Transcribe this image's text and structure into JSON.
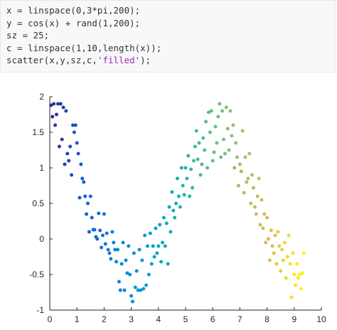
{
  "code": {
    "lines": [
      "x = linspace(0,3*pi,200);",
      "y = cos(x) + rand(1,200);",
      "sz = 25;",
      "c = linspace(1,10,length(x));",
      "scatter(x,y,sz,c,"
    ],
    "last_line_string": "'filled'",
    "last_line_end": ");"
  },
  "chart_data": {
    "type": "scatter",
    "xlim": [
      0,
      10
    ],
    "ylim": [
      -1,
      2
    ],
    "xticks": [
      "0",
      "1",
      "2",
      "3",
      "4",
      "5",
      "6",
      "7",
      "8",
      "9",
      "10"
    ],
    "yticks": [
      "2",
      "1.5",
      "1",
      "0.5",
      "0",
      "-0.5",
      "-1"
    ],
    "grid": false,
    "marker_size": 25,
    "colormap": "parula",
    "series": [
      {
        "points": [
          [
            0.05,
            1.88
          ],
          [
            0.1,
            1.72
          ],
          [
            0.15,
            1.9
          ],
          [
            0.2,
            1.6
          ],
          [
            0.25,
            1.75
          ],
          [
            0.3,
            1.9
          ],
          [
            0.35,
            1.3
          ],
          [
            0.4,
            1.9
          ],
          [
            0.45,
            1.4
          ],
          [
            0.5,
            1.85
          ],
          [
            0.55,
            1.05
          ],
          [
            0.6,
            1.8
          ],
          [
            0.65,
            1.2
          ],
          [
            0.7,
            1.1
          ],
          [
            0.75,
            1.3
          ],
          [
            0.8,
            0.9
          ],
          [
            0.85,
            1.6
          ],
          [
            0.9,
            1.5
          ],
          [
            0.95,
            1.6
          ],
          [
            1.0,
            1.35
          ],
          [
            1.05,
            1.2
          ],
          [
            1.1,
            0.58
          ],
          [
            1.15,
            1.05
          ],
          [
            1.2,
            0.85
          ],
          [
            1.25,
            0.8
          ],
          [
            1.3,
            0.6
          ],
          [
            1.35,
            0.35
          ],
          [
            1.4,
            0.5
          ],
          [
            1.45,
            0.1
          ],
          [
            1.5,
            0.6
          ],
          [
            1.55,
            0.3
          ],
          [
            1.6,
            0.13
          ],
          [
            1.65,
            0.13
          ],
          [
            1.7,
            0.03
          ],
          [
            1.75,
            0.0
          ],
          [
            1.8,
            0.36
          ],
          [
            1.85,
            0.12
          ],
          [
            1.9,
            -0.12
          ],
          [
            1.95,
            0.05
          ],
          [
            2.0,
            0.35
          ],
          [
            2.05,
            -0.07
          ],
          [
            2.1,
            0.08
          ],
          [
            2.15,
            -0.15
          ],
          [
            2.2,
            -0.2
          ],
          [
            2.25,
            -0.28
          ],
          [
            2.3,
            0.1
          ],
          [
            2.35,
            -0.05
          ],
          [
            2.4,
            -0.15
          ],
          [
            2.45,
            -0.32
          ],
          [
            2.5,
            -0.15
          ],
          [
            2.55,
            -0.6
          ],
          [
            2.6,
            -0.72
          ],
          [
            2.65,
            -0.35
          ],
          [
            2.7,
            -0.05
          ],
          [
            2.75,
            -0.72
          ],
          [
            2.8,
            -0.3
          ],
          [
            2.85,
            -0.48
          ],
          [
            2.9,
            -0.1
          ],
          [
            2.95,
            -0.5
          ],
          [
            3.0,
            -0.8
          ],
          [
            3.05,
            -0.88
          ],
          [
            3.1,
            -0.2
          ],
          [
            3.15,
            -0.68
          ],
          [
            3.2,
            -0.45
          ],
          [
            3.25,
            -0.72
          ],
          [
            3.3,
            -0.15
          ],
          [
            3.35,
            -0.72
          ],
          [
            3.4,
            -0.3
          ],
          [
            3.45,
            -0.7
          ],
          [
            3.5,
            0.05
          ],
          [
            3.55,
            -0.65
          ],
          [
            3.6,
            -0.1
          ],
          [
            3.65,
            -0.5
          ],
          [
            3.7,
            0.08
          ],
          [
            3.75,
            -0.35
          ],
          [
            3.8,
            -0.1
          ],
          [
            3.85,
            -0.25
          ],
          [
            3.9,
            0.15
          ],
          [
            3.95,
            -0.2
          ],
          [
            4.0,
            -0.1
          ],
          [
            4.05,
            0.2
          ],
          [
            4.1,
            -0.32
          ],
          [
            4.15,
            -0.05
          ],
          [
            4.2,
            0.3
          ],
          [
            4.25,
            -0.1
          ],
          [
            4.3,
            0.22
          ],
          [
            4.35,
            -0.35
          ],
          [
            4.4,
            0.45
          ],
          [
            4.45,
            0.1
          ],
          [
            4.5,
            0.66
          ],
          [
            4.55,
            0.4
          ],
          [
            4.6,
            0.3
          ],
          [
            4.65,
            0.5
          ],
          [
            4.7,
            0.85
          ],
          [
            4.75,
            0.6
          ],
          [
            4.8,
            0.45
          ],
          [
            4.85,
            1.0
          ],
          [
            4.9,
            0.75
          ],
          [
            4.95,
            0.62
          ],
          [
            5.0,
            1.0
          ],
          [
            5.05,
            0.85
          ],
          [
            5.1,
            1.17
          ],
          [
            5.15,
            0.6
          ],
          [
            5.2,
            0.98
          ],
          [
            5.25,
            0.72
          ],
          [
            5.3,
            1.1
          ],
          [
            5.35,
            1.3
          ],
          [
            5.4,
            1.52
          ],
          [
            5.45,
            1.12
          ],
          [
            5.5,
            1.35
          ],
          [
            5.55,
            0.9
          ],
          [
            5.6,
            1.05
          ],
          [
            5.65,
            1.42
          ],
          [
            5.7,
            1.25
          ],
          [
            5.75,
            1.65
          ],
          [
            5.8,
            1.0
          ],
          [
            5.85,
            1.78
          ],
          [
            5.9,
            1.5
          ],
          [
            5.95,
            1.8
          ],
          [
            6.0,
            1.1
          ],
          [
            6.05,
            1.22
          ],
          [
            6.1,
            1.58
          ],
          [
            6.15,
            1.35
          ],
          [
            6.2,
            1.72
          ],
          [
            6.25,
            1.9
          ],
          [
            6.3,
            1.15
          ],
          [
            6.35,
            1.8
          ],
          [
            6.4,
            1.4
          ],
          [
            6.45,
            1.2
          ],
          [
            6.5,
            1.85
          ],
          [
            6.55,
            1.55
          ],
          [
            6.6,
            1.25
          ],
          [
            6.65,
            1.8
          ],
          [
            6.7,
            1.45
          ],
          [
            6.75,
            1.6
          ],
          [
            6.8,
            1.0
          ],
          [
            6.85,
            1.35
          ],
          [
            6.9,
            1.15
          ],
          [
            6.95,
            0.75
          ],
          [
            7.0,
            1.05
          ],
          [
            7.05,
            0.95
          ],
          [
            7.1,
            1.52
          ],
          [
            7.15,
            0.65
          ],
          [
            7.2,
            1.15
          ],
          [
            7.25,
            0.8
          ],
          [
            7.3,
            0.85
          ],
          [
            7.35,
            1.2
          ],
          [
            7.4,
            0.5
          ],
          [
            7.45,
            0.9
          ],
          [
            7.5,
            0.72
          ],
          [
            7.55,
            0.45
          ],
          [
            7.6,
            0.35
          ],
          [
            7.65,
            0.6
          ],
          [
            7.7,
            0.85
          ],
          [
            7.75,
            0.2
          ],
          [
            7.8,
            0.55
          ],
          [
            7.85,
            0.15
          ],
          [
            7.9,
            0.35
          ],
          [
            7.95,
            -0.05
          ],
          [
            8.0,
            0.3
          ],
          [
            8.05,
            0.0
          ],
          [
            8.1,
            -0.3
          ],
          [
            8.15,
            0.12
          ],
          [
            8.2,
            -0.1
          ],
          [
            8.25,
            -0.2
          ],
          [
            8.3,
            0.05
          ],
          [
            8.35,
            -0.35
          ],
          [
            8.4,
            0.1
          ],
          [
            8.45,
            -0.1
          ],
          [
            8.5,
            -0.45
          ],
          [
            8.55,
            -0.15
          ],
          [
            8.6,
            -0.3
          ],
          [
            8.65,
            -0.05
          ],
          [
            8.7,
            -0.55
          ],
          [
            8.75,
            -0.25
          ],
          [
            8.8,
            0.05
          ],
          [
            8.85,
            -0.35
          ],
          [
            8.9,
            -0.82
          ],
          [
            8.95,
            -0.2
          ],
          [
            9.0,
            -0.5
          ],
          [
            9.05,
            -0.65
          ],
          [
            9.1,
            -0.35
          ],
          [
            9.15,
            -0.55
          ],
          [
            9.2,
            -0.5
          ],
          [
            9.25,
            -0.7
          ],
          [
            9.3,
            -0.48
          ],
          [
            9.35,
            -0.2
          ]
        ]
      }
    ]
  }
}
